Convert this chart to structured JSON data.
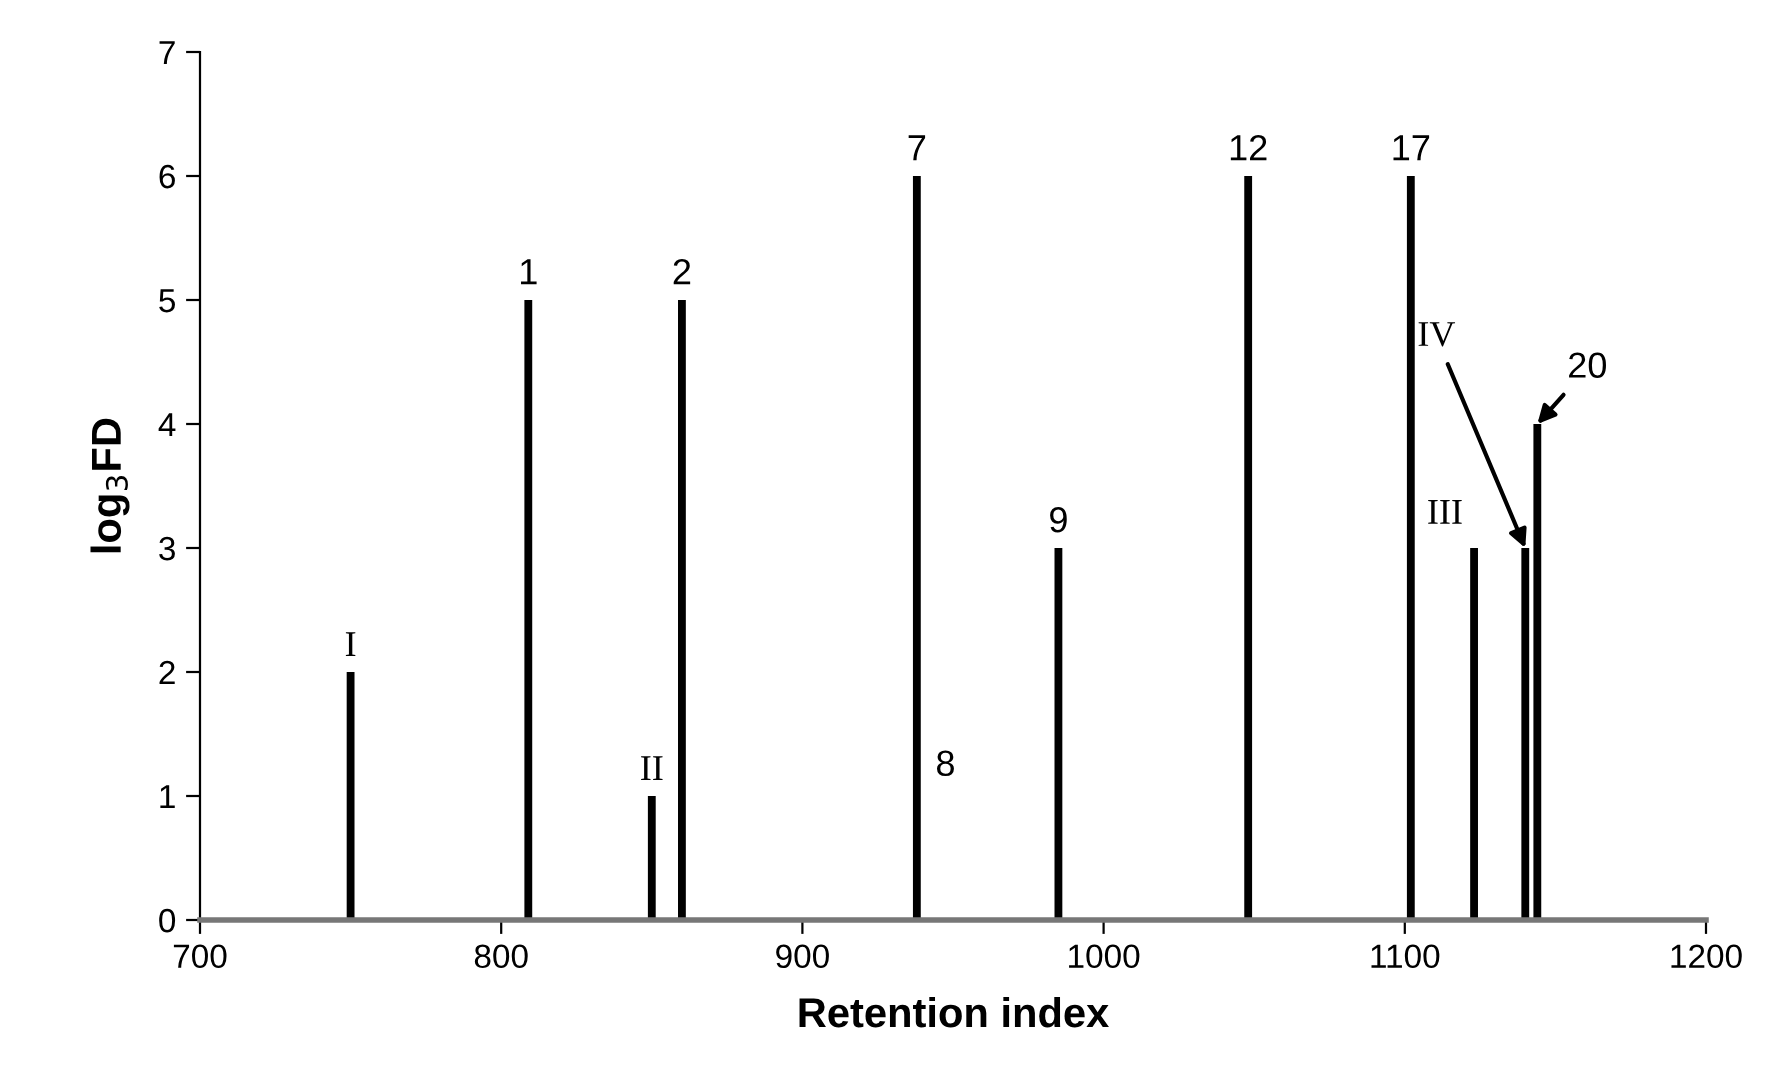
{
  "chart_data": {
    "type": "bar",
    "xlabel": "Retention index",
    "ylabel": "log$_{3}$FD",
    "x": [
      750,
      809,
      850,
      860,
      938,
      985,
      1048,
      1102,
      1123,
      1140,
      1144
    ],
    "values": [
      2,
      5,
      1,
      5,
      6,
      3,
      6,
      6,
      3,
      3,
      4
    ],
    "color": "#000000",
    "xlim": [
      700,
      1200
    ],
    "xticks": [
      700,
      800,
      900,
      1000,
      1100,
      1200
    ],
    "ylim": [
      0,
      7
    ],
    "yticks": [
      0,
      1,
      2,
      3,
      4,
      5,
      6,
      7
    ],
    "grid": false,
    "annotations": [
      {
        "text": "I",
        "x": 750,
        "y": 2
      },
      {
        "text": "1",
        "x": 809,
        "y": 5
      },
      {
        "text": "II",
        "x": 850,
        "y": 1
      },
      {
        "text": "2",
        "x": 860,
        "y": 5
      },
      {
        "text": "7",
        "x": 938,
        "y": 6
      },
      "8",
      {
        "text": "9",
        "x": 985,
        "y": 3
      },
      {
        "text": "12",
        "x": 1048,
        "y": 6
      },
      {
        "text": "17",
        "x": 1102,
        "y": 6
      },
      {
        "text": "III",
        "x": 1123,
        "y": 3
      },
      {
        "text": "IV",
        "x": 1140,
        "y": 3
      },
      {
        "text": "20",
        "x": 1144,
        "y": 4
      }
    ]
  }
}
